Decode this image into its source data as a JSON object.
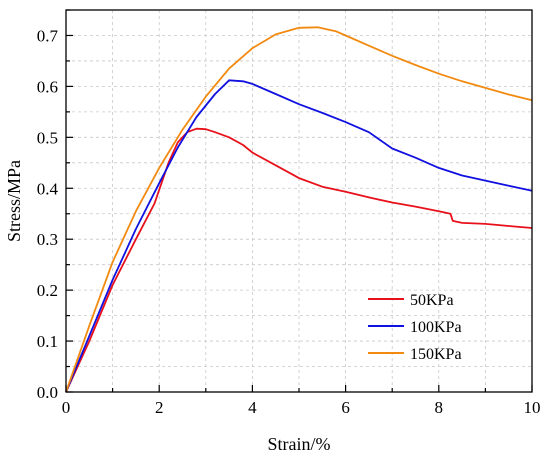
{
  "chart_data": {
    "type": "line",
    "xlabel": "Strain/%",
    "ylabel": "Stress/MPa",
    "xlim": [
      0,
      10
    ],
    "ylim": [
      0,
      0.75
    ],
    "x_ticks": [
      "0",
      "2",
      "4",
      "6",
      "8",
      "10"
    ],
    "y_ticks": [
      "0.0",
      "0.1",
      "0.2",
      "0.3",
      "0.4",
      "0.5",
      "0.6",
      "0.7"
    ],
    "grid": true,
    "legend_position": "lower-right",
    "series": [
      {
        "name": "50KPa",
        "color": "#e8101a",
        "points": [
          [
            0,
            0
          ],
          [
            0.5,
            0.1
          ],
          [
            1.0,
            0.21
          ],
          [
            1.5,
            0.3
          ],
          [
            1.9,
            0.37
          ],
          [
            2.2,
            0.45
          ],
          [
            2.4,
            0.49
          ],
          [
            2.6,
            0.51
          ],
          [
            2.8,
            0.517
          ],
          [
            3.0,
            0.516
          ],
          [
            3.2,
            0.51
          ],
          [
            3.5,
            0.5
          ],
          [
            3.8,
            0.485
          ],
          [
            4.0,
            0.47
          ],
          [
            4.5,
            0.445
          ],
          [
            5.0,
            0.42
          ],
          [
            5.5,
            0.403
          ],
          [
            6.0,
            0.393
          ],
          [
            6.5,
            0.382
          ],
          [
            7.0,
            0.372
          ],
          [
            7.5,
            0.364
          ],
          [
            8.0,
            0.355
          ],
          [
            8.25,
            0.35
          ],
          [
            8.3,
            0.336
          ],
          [
            8.5,
            0.332
          ],
          [
            9.0,
            0.33
          ],
          [
            9.5,
            0.326
          ],
          [
            10.0,
            0.322
          ]
        ]
      },
      {
        "name": "100KPa",
        "color": "#1010e0",
        "points": [
          [
            0,
            0
          ],
          [
            0.5,
            0.11
          ],
          [
            1.0,
            0.22
          ],
          [
            1.5,
            0.32
          ],
          [
            2.0,
            0.41
          ],
          [
            2.4,
            0.48
          ],
          [
            2.8,
            0.54
          ],
          [
            3.2,
            0.585
          ],
          [
            3.5,
            0.612
          ],
          [
            3.8,
            0.61
          ],
          [
            4.0,
            0.605
          ],
          [
            4.5,
            0.585
          ],
          [
            5.0,
            0.565
          ],
          [
            5.5,
            0.548
          ],
          [
            6.0,
            0.53
          ],
          [
            6.5,
            0.51
          ],
          [
            7.0,
            0.478
          ],
          [
            7.5,
            0.46
          ],
          [
            8.0,
            0.44
          ],
          [
            8.5,
            0.425
          ],
          [
            9.0,
            0.415
          ],
          [
            9.5,
            0.405
          ],
          [
            10.0,
            0.395
          ]
        ]
      },
      {
        "name": "150KPa",
        "color": "#f28a10",
        "points": [
          [
            0,
            0
          ],
          [
            0.5,
            0.13
          ],
          [
            1.0,
            0.255
          ],
          [
            1.5,
            0.355
          ],
          [
            2.0,
            0.44
          ],
          [
            2.5,
            0.515
          ],
          [
            3.0,
            0.58
          ],
          [
            3.5,
            0.635
          ],
          [
            4.0,
            0.675
          ],
          [
            4.5,
            0.702
          ],
          [
            5.0,
            0.715
          ],
          [
            5.4,
            0.716
          ],
          [
            5.8,
            0.708
          ],
          [
            6.0,
            0.7
          ],
          [
            6.5,
            0.68
          ],
          [
            7.0,
            0.66
          ],
          [
            7.5,
            0.642
          ],
          [
            8.0,
            0.625
          ],
          [
            8.5,
            0.61
          ],
          [
            9.0,
            0.597
          ],
          [
            9.5,
            0.584
          ],
          [
            10.0,
            0.573
          ]
        ]
      }
    ]
  }
}
